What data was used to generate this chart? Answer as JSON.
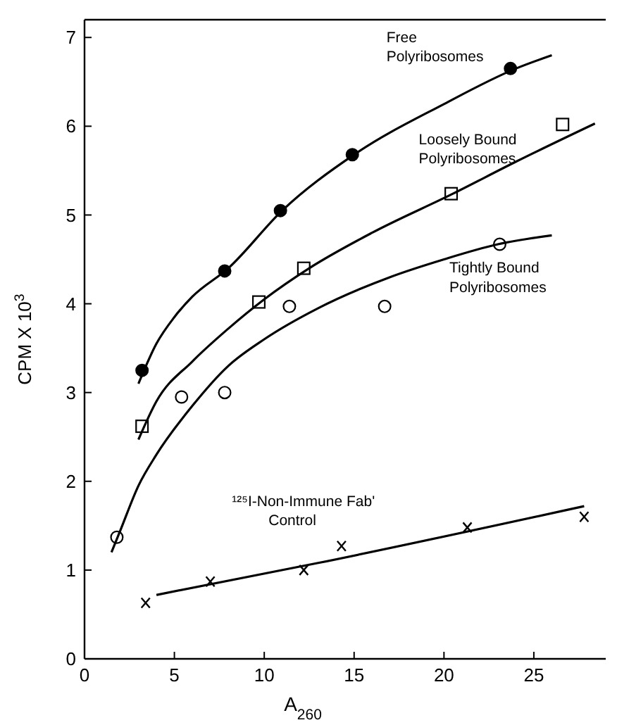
{
  "chart_data": {
    "type": "scatter",
    "xlabel": "A$_{260}$",
    "ylabel": "CPM X 10$^{3}$",
    "xlim": [
      0,
      29
    ],
    "ylim": [
      0,
      7.2
    ],
    "xticks": [
      0,
      5,
      10,
      15,
      20,
      25
    ],
    "yticks": [
      0,
      1,
      2,
      3,
      4,
      5,
      6,
      7
    ],
    "grid": false,
    "series": [
      {
        "name": "Free Polyribosomes",
        "marker": "circle",
        "color": "#000000",
        "x": [
          3.2,
          7.8,
          10.9,
          14.9,
          23.7
        ],
        "values": [
          3.25,
          4.37,
          5.05,
          5.68,
          6.65
        ]
      },
      {
        "type": "line",
        "color": "#000000",
        "x": [
          3,
          4,
          5,
          6,
          8,
          11,
          15,
          20,
          24,
          26
        ],
        "values": [
          3.1,
          3.55,
          3.85,
          4.08,
          4.4,
          5.05,
          5.68,
          6.25,
          6.65,
          6.8
        ]
      },
      {
        "name": "Loosely Bound Polyribosomes",
        "marker": "square",
        "color": "#000000",
        "x": [
          3.2,
          9.7,
          12.2,
          20.4,
          26.6
        ],
        "values": [
          2.62,
          4.02,
          4.4,
          5.24,
          6.02
        ]
      },
      {
        "type": "line",
        "color": "#000000",
        "x": [
          3,
          4,
          6,
          8,
          10,
          12.5,
          16,
          20.5,
          24,
          28.4
        ],
        "values": [
          2.47,
          2.9,
          3.35,
          3.72,
          4.05,
          4.4,
          4.8,
          5.24,
          5.6,
          6.03
        ]
      },
      {
        "name": "Tightly Bound Polyribosomes",
        "marker": "circle",
        "color": "#000000",
        "x": [
          1.8,
          5.4,
          7.8,
          11.4,
          16.7,
          23.1
        ],
        "values": [
          1.37,
          2.95,
          3.0,
          3.97,
          3.97,
          4.67
        ]
      },
      {
        "type": "line",
        "color": "#000000",
        "x": [
          1.5,
          2,
          3,
          4,
          6,
          8,
          10,
          13,
          17,
          20,
          23,
          26
        ],
        "values": [
          1.2,
          1.45,
          1.95,
          2.3,
          2.85,
          3.3,
          3.6,
          3.95,
          4.3,
          4.5,
          4.67,
          4.77
        ]
      },
      {
        "name": "¹²⁵I-Non-Immune Fab' Control",
        "marker": "cross",
        "color": "#000000",
        "x": [
          3.4,
          7.0,
          12.2,
          14.3,
          21.3,
          27.8
        ],
        "values": [
          0.63,
          0.87,
          1.0,
          1.27,
          1.48,
          1.6
        ]
      },
      {
        "type": "line",
        "color": "#000000",
        "x": [
          4,
          13,
          27.8
        ],
        "values": [
          0.72,
          1.08,
          1.72
        ]
      }
    ]
  }
}
